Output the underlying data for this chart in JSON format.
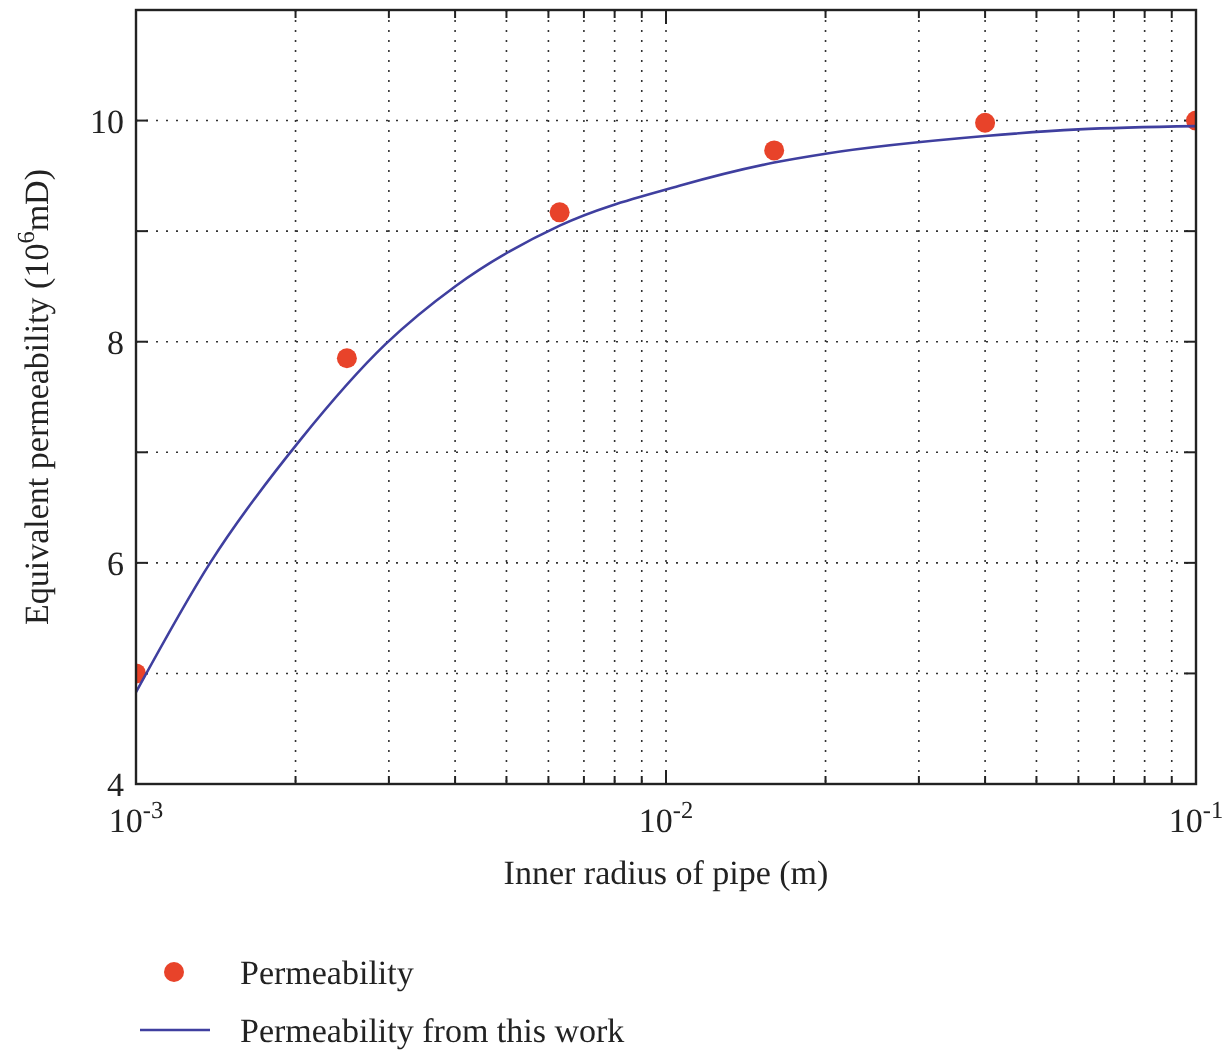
{
  "chart_data": {
    "type": "scatter",
    "xlabel": "Inner radius of pipe (m)",
    "ylabel": "Equivalent permeability (10$^{6}$mD)",
    "log": "x",
    "grid": true,
    "legend": "bottom",
    "xlim": [
      0.001,
      0.1
    ],
    "ylim": [
      4,
      11
    ],
    "xticks": [
      {
        "value": 0.001,
        "label": "10$^{-3}$"
      },
      {
        "value": 0.002,
        "label": null
      },
      {
        "value": 0.003,
        "label": null
      },
      {
        "value": 0.004,
        "label": null
      },
      {
        "value": 0.005,
        "label": null
      },
      {
        "value": 0.006,
        "label": null
      },
      {
        "value": 0.007,
        "label": null
      },
      {
        "value": 0.008,
        "label": null
      },
      {
        "value": 0.009,
        "label": null
      },
      {
        "value": 0.01,
        "label": "10$^{-2}$"
      },
      {
        "value": 0.02,
        "label": null
      },
      {
        "value": 0.03,
        "label": null
      },
      {
        "value": 0.04,
        "label": null
      },
      {
        "value": 0.05,
        "label": null
      },
      {
        "value": 0.06,
        "label": null
      },
      {
        "value": 0.07,
        "label": null
      },
      {
        "value": 0.08,
        "label": null
      },
      {
        "value": 0.09,
        "label": null
      },
      {
        "value": 0.1,
        "label": "10$^{-1}$"
      }
    ],
    "yticks": [
      4,
      {
        "value": 5,
        "label": null
      },
      6,
      {
        "value": 7,
        "label": null
      },
      8,
      {
        "value": 9,
        "label": null
      },
      10,
      {
        "value": 11,
        "label": null
      }
    ],
    "series": [
      {
        "name": "Permeability",
        "marker": "circle",
        "color": "#e8432a",
        "x": [
          0.001,
          0.0025,
          0.0063,
          0.016,
          0.04,
          0.1
        ],
        "values": [
          5.0,
          7.85,
          9.17,
          9.73,
          9.98,
          10.0
        ]
      },
      {
        "name": "Permeability from this work",
        "type": "line",
        "marker": "none",
        "line_style": "solid",
        "color": "#3f3f9f",
        "x": [
          0.001,
          0.00138,
          0.00204,
          0.00296,
          0.004,
          0.0063,
          0.0106,
          0.016,
          0.02,
          0.04,
          0.06,
          0.1
        ],
        "values": [
          4.83,
          6.0,
          7.11,
          7.98,
          8.5,
          9.05,
          9.41,
          9.62,
          9.7,
          9.86,
          9.92,
          9.95
        ]
      }
    ]
  }
}
